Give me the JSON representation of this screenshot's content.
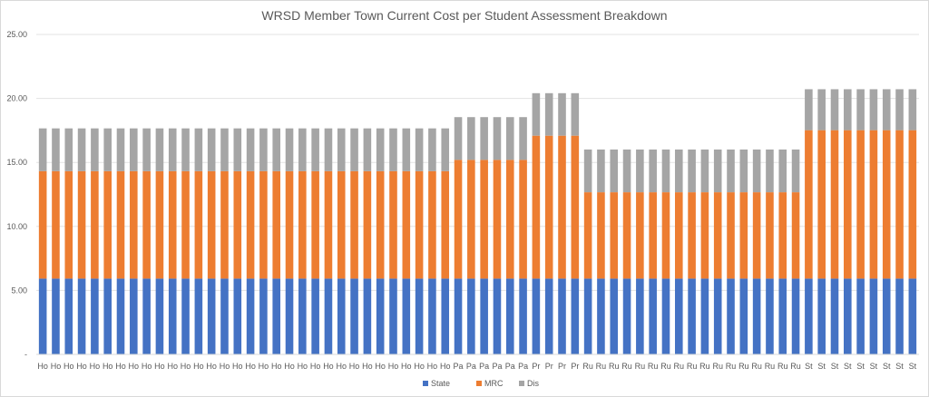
{
  "chart_data": {
    "type": "bar",
    "stacked": true,
    "title": "WRSD Member Town Current Cost per Student Assessment Breakdown",
    "xlabel": "",
    "ylabel": "",
    "ylim": [
      0,
      25
    ],
    "yticks": [
      "-",
      "5.00",
      "10.00",
      "15.00",
      "20.00",
      "25.00"
    ],
    "grid": true,
    "legend": "bottom",
    "categories": [
      "Ho",
      "Ho",
      "Ho",
      "Ho",
      "Ho",
      "Ho",
      "Ho",
      "Ho",
      "Ho",
      "Ho",
      "Ho",
      "Ho",
      "Ho",
      "Ho",
      "Ho",
      "Ho",
      "Ho",
      "Ho",
      "Ho",
      "Ho",
      "Ho",
      "Ho",
      "Ho",
      "Ho",
      "Ho",
      "Ho",
      "Ho",
      "Ho",
      "Ho",
      "Ho",
      "Ho",
      "Ho",
      "Pa",
      "Pa",
      "Pa",
      "Pa",
      "Pa",
      "Pa",
      "Pr",
      "Pr",
      "Pr",
      "Pr",
      "Ru",
      "Ru",
      "Ru",
      "Ru",
      "Ru",
      "Ru",
      "Ru",
      "Ru",
      "Ru",
      "Ru",
      "Ru",
      "Ru",
      "Ru",
      "Ru",
      "Ru",
      "Ru",
      "Ru",
      "St",
      "St",
      "St",
      "St",
      "St",
      "St",
      "St",
      "St",
      "St"
    ],
    "series": [
      {
        "name": "State",
        "color": "#4472c4",
        "values": [
          5.92,
          5.92,
          5.92,
          5.92,
          5.92,
          5.92,
          5.92,
          5.92,
          5.92,
          5.92,
          5.92,
          5.92,
          5.92,
          5.92,
          5.92,
          5.92,
          5.92,
          5.92,
          5.92,
          5.92,
          5.92,
          5.92,
          5.92,
          5.92,
          5.92,
          5.92,
          5.92,
          5.92,
          5.92,
          5.92,
          5.92,
          5.92,
          5.92,
          5.92,
          5.92,
          5.92,
          5.92,
          5.92,
          5.92,
          5.92,
          5.92,
          5.92,
          5.92,
          5.92,
          5.92,
          5.92,
          5.92,
          5.92,
          5.92,
          5.92,
          5.92,
          5.92,
          5.92,
          5.92,
          5.92,
          5.92,
          5.92,
          5.92,
          5.92,
          5.92,
          5.92,
          5.92,
          5.92,
          5.92,
          5.92,
          5.92,
          5.92,
          5.92
        ]
      },
      {
        "name": "MRC",
        "color": "#ed7d31",
        "values": [
          8.4,
          8.4,
          8.4,
          8.4,
          8.4,
          8.4,
          8.4,
          8.4,
          8.4,
          8.4,
          8.4,
          8.4,
          8.4,
          8.4,
          8.4,
          8.4,
          8.4,
          8.4,
          8.4,
          8.4,
          8.4,
          8.4,
          8.4,
          8.4,
          8.4,
          8.4,
          8.4,
          8.4,
          8.4,
          8.4,
          8.4,
          8.4,
          9.28,
          9.28,
          9.28,
          9.28,
          9.28,
          9.28,
          11.17,
          11.17,
          11.17,
          11.17,
          6.75,
          6.75,
          6.75,
          6.75,
          6.75,
          6.75,
          6.75,
          6.75,
          6.75,
          6.75,
          6.75,
          6.75,
          6.75,
          6.75,
          6.75,
          6.75,
          6.75,
          11.6,
          11.6,
          11.6,
          11.6,
          11.6,
          11.6,
          11.6,
          11.6,
          11.6
        ]
      },
      {
        "name": "Dis",
        "color": "#a5a5a5",
        "values": [
          3.34,
          3.34,
          3.34,
          3.34,
          3.34,
          3.34,
          3.34,
          3.34,
          3.34,
          3.34,
          3.34,
          3.34,
          3.34,
          3.34,
          3.34,
          3.34,
          3.34,
          3.34,
          3.34,
          3.34,
          3.34,
          3.34,
          3.34,
          3.34,
          3.34,
          3.34,
          3.34,
          3.34,
          3.34,
          3.34,
          3.34,
          3.34,
          3.34,
          3.34,
          3.34,
          3.34,
          3.34,
          3.34,
          3.32,
          3.32,
          3.32,
          3.32,
          3.34,
          3.34,
          3.34,
          3.34,
          3.34,
          3.34,
          3.34,
          3.34,
          3.34,
          3.34,
          3.34,
          3.34,
          3.34,
          3.34,
          3.34,
          3.34,
          3.34,
          3.2,
          3.2,
          3.2,
          3.2,
          3.2,
          3.2,
          3.2,
          3.2,
          3.2
        ]
      }
    ]
  }
}
